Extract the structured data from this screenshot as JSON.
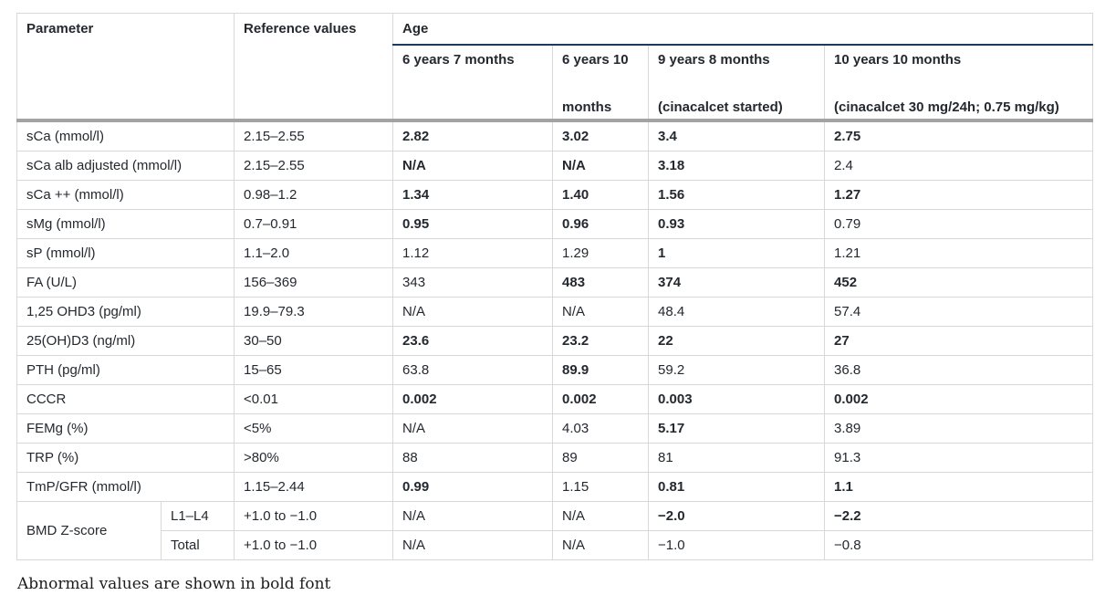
{
  "table": {
    "header": {
      "parameter": "Parameter",
      "reference": "Reference values",
      "age": "Age",
      "age_columns": [
        {
          "line1": "6 years 7 months",
          "line2": ""
        },
        {
          "line1": "6 years 10",
          "line2": "months"
        },
        {
          "line1": "9 years 8 months",
          "line2": "(cinacalcet started)"
        },
        {
          "line1": "10 years 10 months",
          "line2": "(cinacalcet 30 mg/24h; 0.75 mg/kg)"
        }
      ]
    },
    "rows": [
      {
        "parameter": "sCa (mmol/l)",
        "sub": null,
        "reference": "2.15–2.55",
        "values": [
          {
            "text": "2.82",
            "bold": true
          },
          {
            "text": "3.02",
            "bold": true
          },
          {
            "text": "3.4",
            "bold": true
          },
          {
            "text": "2.75",
            "bold": true
          }
        ]
      },
      {
        "parameter": "sCa alb adjusted (mmol/l)",
        "sub": null,
        "reference": "2.15–2.55",
        "values": [
          {
            "text": "N/A",
            "bold": true
          },
          {
            "text": "N/A",
            "bold": true
          },
          {
            "text": "3.18",
            "bold": true
          },
          {
            "text": "2.4",
            "bold": false
          }
        ]
      },
      {
        "parameter": "sCa ++ (mmol/l)",
        "sub": null,
        "reference": "0.98–1.2",
        "values": [
          {
            "text": "1.34",
            "bold": true
          },
          {
            "text": "1.40",
            "bold": true
          },
          {
            "text": "1.56",
            "bold": true
          },
          {
            "text": "1.27",
            "bold": true
          }
        ]
      },
      {
        "parameter": "sMg (mmol/l)",
        "sub": null,
        "reference": "0.7–0.91",
        "values": [
          {
            "text": "0.95",
            "bold": true
          },
          {
            "text": "0.96",
            "bold": true
          },
          {
            "text": "0.93",
            "bold": true
          },
          {
            "text": "0.79",
            "bold": false
          }
        ]
      },
      {
        "parameter": "sP (mmol/l)",
        "sub": null,
        "reference": "1.1–2.0",
        "values": [
          {
            "text": "1.12",
            "bold": false
          },
          {
            "text": "1.29",
            "bold": false
          },
          {
            "text": "1",
            "bold": true
          },
          {
            "text": "1.21",
            "bold": false
          }
        ]
      },
      {
        "parameter": "FA (U/L)",
        "sub": null,
        "reference": "156–369",
        "values": [
          {
            "text": "343",
            "bold": false
          },
          {
            "text": "483",
            "bold": true
          },
          {
            "text": "374",
            "bold": true
          },
          {
            "text": "452",
            "bold": true
          }
        ]
      },
      {
        "parameter": "1,25 OHD3 (pg/ml)",
        "sub": null,
        "reference": "19.9–79.3",
        "values": [
          {
            "text": "N/A",
            "bold": false
          },
          {
            "text": "N/A",
            "bold": false
          },
          {
            "text": "48.4",
            "bold": false
          },
          {
            "text": "57.4",
            "bold": false
          }
        ]
      },
      {
        "parameter": "25(OH)D3 (ng/ml)",
        "sub": null,
        "reference": "30–50",
        "values": [
          {
            "text": "23.6",
            "bold": true
          },
          {
            "text": "23.2",
            "bold": true
          },
          {
            "text": "22",
            "bold": true
          },
          {
            "text": "27",
            "bold": true
          }
        ]
      },
      {
        "parameter": "PTH (pg/ml)",
        "sub": null,
        "reference": "15–65",
        "values": [
          {
            "text": "63.8",
            "bold": false
          },
          {
            "text": "89.9",
            "bold": true
          },
          {
            "text": "59.2",
            "bold": false
          },
          {
            "text": "36.8",
            "bold": false
          }
        ]
      },
      {
        "parameter": "CCCR",
        "sub": null,
        "reference": "<0.01",
        "values": [
          {
            "text": "0.002",
            "bold": true
          },
          {
            "text": "0.002",
            "bold": true
          },
          {
            "text": "0.003",
            "bold": true
          },
          {
            "text": "0.002",
            "bold": true
          }
        ]
      },
      {
        "parameter": "FEMg (%)",
        "sub": null,
        "reference": "<5%",
        "values": [
          {
            "text": "N/A",
            "bold": false
          },
          {
            "text": "4.03",
            "bold": false
          },
          {
            "text": "5.17",
            "bold": true
          },
          {
            "text": "3.89",
            "bold": false
          }
        ]
      },
      {
        "parameter": "TRP (%)",
        "sub": null,
        "reference": ">80%",
        "values": [
          {
            "text": "88",
            "bold": false
          },
          {
            "text": "89",
            "bold": false
          },
          {
            "text": "81",
            "bold": false
          },
          {
            "text": "91.3",
            "bold": false
          }
        ]
      },
      {
        "parameter": "TmP/GFR (mmol/l)",
        "sub": null,
        "reference": "1.15–2.44",
        "values": [
          {
            "text": "0.99",
            "bold": true
          },
          {
            "text": "1.15",
            "bold": false
          },
          {
            "text": "0.81",
            "bold": true
          },
          {
            "text": "1.1",
            "bold": true
          }
        ]
      },
      {
        "parameter": "BMD Z-score",
        "sub": "L1–L4",
        "group_span": 2,
        "reference": "+1.0 to −1.0",
        "values": [
          {
            "text": "N/A",
            "bold": false
          },
          {
            "text": "N/A",
            "bold": false
          },
          {
            "text": "−2.0",
            "bold": true
          },
          {
            "text": "−2.2",
            "bold": true
          }
        ]
      },
      {
        "parameter": null,
        "sub": "Total",
        "reference": "+1.0 to −1.0",
        "values": [
          {
            "text": "N/A",
            "bold": false
          },
          {
            "text": "N/A",
            "bold": false
          },
          {
            "text": "−1.0",
            "bold": false
          },
          {
            "text": "−0.8",
            "bold": false
          }
        ]
      }
    ],
    "footnote": "Abnormal values are shown in bold font"
  },
  "colors": {
    "text": "#24282f",
    "age_underline_blue": "#1b3a5f",
    "header_divider_gray": "#a3a3a3",
    "cell_border_gray": "#d8d8d8",
    "background": "#ffffff"
  }
}
